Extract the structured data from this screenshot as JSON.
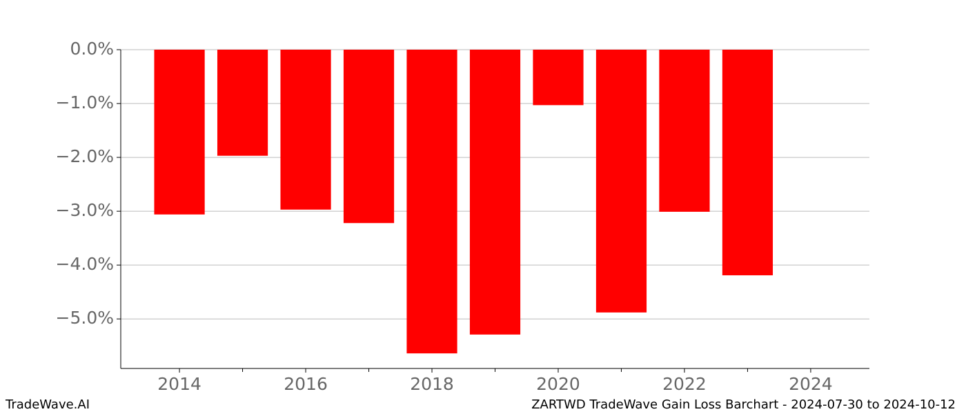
{
  "chart_data": {
    "type": "bar",
    "title": "ZARTWD TradeWave Gain Loss Barchart - 2024-07-30 to 2024-10-12",
    "brand": "TradeWave.AI",
    "x": [
      2014,
      2015,
      2016,
      2017,
      2018,
      2019,
      2020,
      2021,
      2022,
      2023
    ],
    "values": [
      -3.06,
      -1.97,
      -2.97,
      -3.22,
      -5.64,
      -5.29,
      -1.03,
      -4.88,
      -3.01,
      -4.19
    ],
    "color": "#ff0000",
    "xlim": [
      2013.07,
      2024.93
    ],
    "xticks": [
      2014,
      2016,
      2018,
      2020,
      2022,
      2024
    ],
    "xminorticks": [
      2015,
      2017,
      2019,
      2021,
      2023
    ],
    "ylim": [
      -5.92,
      0
    ],
    "yticks": [
      {
        "value": 0,
        "label": "0.0%"
      },
      {
        "value": -1,
        "label": "−1.0%"
      },
      {
        "value": -2,
        "label": "−2.0%"
      },
      {
        "value": -3,
        "label": "−3.0%"
      },
      {
        "value": -4,
        "label": "−4.0%"
      },
      {
        "value": -5,
        "label": "−5.0%"
      }
    ],
    "grid": true
  }
}
